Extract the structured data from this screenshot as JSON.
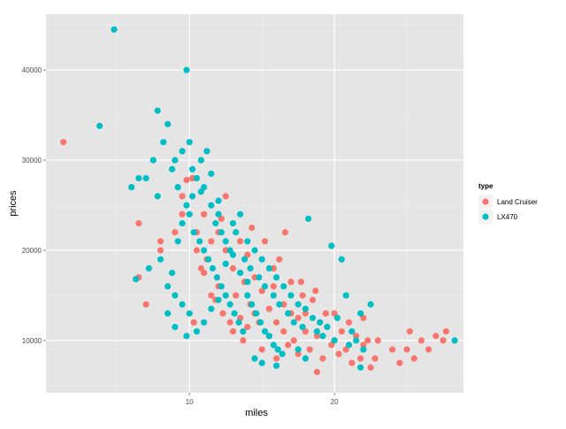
{
  "chart_data": {
    "type": "scatter",
    "title": "",
    "xlabel": "miles",
    "ylabel": "prices",
    "xlim": [
      0.1,
      28.9
    ],
    "ylim": [
      4200,
      46200
    ],
    "x_ticks": [
      10,
      20
    ],
    "y_ticks": [
      10000,
      20000,
      30000,
      40000
    ],
    "grid": true,
    "background": "#E5E5E5",
    "legend": {
      "title": "type",
      "placement": "right"
    },
    "series": [
      {
        "name": "Land Cruiser",
        "color": "#F8766D",
        "points": [
          [
            1.3,
            32000
          ],
          [
            6.5,
            23000
          ],
          [
            6.5,
            17000
          ],
          [
            7.0,
            14000
          ],
          [
            8.0,
            21000
          ],
          [
            8.0,
            20000
          ],
          [
            9.0,
            22000
          ],
          [
            9.5,
            24000
          ],
          [
            9.8,
            27800
          ],
          [
            10.2,
            28000
          ],
          [
            9.5,
            26000
          ],
          [
            10.5,
            20000
          ],
          [
            10.5,
            22000
          ],
          [
            10.8,
            18000
          ],
          [
            11.0,
            17500
          ],
          [
            11.2,
            19000
          ],
          [
            11.5,
            15000
          ],
          [
            11.5,
            21000
          ],
          [
            11.8,
            14500
          ],
          [
            12.0,
            16000
          ],
          [
            12.0,
            22000
          ],
          [
            12.3,
            13000
          ],
          [
            12.5,
            20000
          ],
          [
            12.5,
            26000
          ],
          [
            12.8,
            12000
          ],
          [
            13.0,
            18000
          ],
          [
            13.2,
            15000
          ],
          [
            13.5,
            12500
          ],
          [
            13.5,
            21000
          ],
          [
            13.8,
            16500
          ],
          [
            14.0,
            11500
          ],
          [
            14.0,
            19500
          ],
          [
            14.2,
            14000
          ],
          [
            14.5,
            13000
          ],
          [
            14.5,
            17000
          ],
          [
            14.8,
            12000
          ],
          [
            15.0,
            15500
          ],
          [
            15.0,
            9000
          ],
          [
            15.2,
            21000
          ],
          [
            15.5,
            13500
          ],
          [
            15.5,
            10500
          ],
          [
            15.8,
            16000
          ],
          [
            16.0,
            12000
          ],
          [
            16.0,
            8000
          ],
          [
            16.2,
            19000
          ],
          [
            16.5,
            14000
          ],
          [
            16.5,
            11000
          ],
          [
            16.8,
            9500
          ],
          [
            17.0,
            13000
          ],
          [
            17.0,
            16500
          ],
          [
            17.2,
            10000
          ],
          [
            17.5,
            12500
          ],
          [
            17.5,
            8500
          ],
          [
            17.8,
            15000
          ],
          [
            18.0,
            11000
          ],
          [
            18.0,
            13000
          ],
          [
            18.3,
            9000
          ],
          [
            18.5,
            14500
          ],
          [
            18.8,
            10500
          ],
          [
            18.8,
            6500
          ],
          [
            19.0,
            12000
          ],
          [
            19.2,
            8000
          ],
          [
            19.5,
            11500
          ],
          [
            19.8,
            9500
          ],
          [
            20.0,
            10000
          ],
          [
            20.0,
            13000
          ],
          [
            20.3,
            8500
          ],
          [
            20.5,
            11000
          ],
          [
            20.8,
            9000
          ],
          [
            21.0,
            12000
          ],
          [
            21.2,
            7500
          ],
          [
            21.5,
            10500
          ],
          [
            21.8,
            8000
          ],
          [
            22.0,
            9500
          ],
          [
            22.0,
            12500
          ],
          [
            22.3,
            10000
          ],
          [
            22.5,
            7000
          ],
          [
            22.8,
            8000
          ],
          [
            23.0,
            10000
          ],
          [
            24.0,
            9000
          ],
          [
            24.5,
            7500
          ],
          [
            25.0,
            9000
          ],
          [
            25.2,
            11000
          ],
          [
            25.5,
            8000
          ],
          [
            26.0,
            10000
          ],
          [
            26.5,
            9000
          ],
          [
            27.0,
            10500
          ],
          [
            27.5,
            10000
          ],
          [
            27.7,
            11000
          ],
          [
            10.3,
            12000
          ],
          [
            11.0,
            24000
          ],
          [
            12.2,
            23500
          ],
          [
            13.0,
            11000
          ],
          [
            13.7,
            10000
          ],
          [
            14.3,
            22500
          ],
          [
            15.8,
            18000
          ],
          [
            16.6,
            22000
          ],
          [
            17.7,
            16500
          ],
          [
            18.7,
            15500
          ],
          [
            19.4,
            13000
          ]
        ]
      },
      {
        "name": "LX470",
        "color": "#00BFC4",
        "points": [
          [
            4.8,
            44500
          ],
          [
            9.8,
            40000
          ],
          [
            3.8,
            33800
          ],
          [
            7.8,
            35500
          ],
          [
            8.5,
            34000
          ],
          [
            8.2,
            32000
          ],
          [
            9.0,
            30000
          ],
          [
            9.5,
            31000
          ],
          [
            10.0,
            32000
          ],
          [
            7.5,
            30000
          ],
          [
            6.0,
            27000
          ],
          [
            6.5,
            28000
          ],
          [
            7.0,
            28000
          ],
          [
            7.8,
            26000
          ],
          [
            8.8,
            29000
          ],
          [
            9.2,
            27000
          ],
          [
            9.8,
            25000
          ],
          [
            10.2,
            26000
          ],
          [
            10.5,
            28000
          ],
          [
            10.8,
            30000
          ],
          [
            11.0,
            27000
          ],
          [
            11.2,
            31000
          ],
          [
            11.5,
            25000
          ],
          [
            11.8,
            23000
          ],
          [
            12.0,
            24000
          ],
          [
            12.2,
            22000
          ],
          [
            12.5,
            21000
          ],
          [
            12.8,
            20000
          ],
          [
            13.0,
            23000
          ],
          [
            13.2,
            22000
          ],
          [
            13.5,
            24000
          ],
          [
            13.8,
            19000
          ],
          [
            14.0,
            21000
          ],
          [
            14.2,
            18000
          ],
          [
            14.5,
            20000
          ],
          [
            14.8,
            17000
          ],
          [
            15.0,
            19000
          ],
          [
            15.2,
            16000
          ],
          [
            15.5,
            18000
          ],
          [
            15.8,
            15000
          ],
          [
            16.0,
            17000
          ],
          [
            16.2,
            14000
          ],
          [
            16.5,
            16000
          ],
          [
            16.8,
            13000
          ],
          [
            17.0,
            15000
          ],
          [
            17.2,
            12000
          ],
          [
            17.5,
            14000
          ],
          [
            17.8,
            11500
          ],
          [
            18.0,
            13500
          ],
          [
            18.2,
            23500
          ],
          [
            18.5,
            12500
          ],
          [
            18.8,
            11000
          ],
          [
            19.0,
            12000
          ],
          [
            19.2,
            10500
          ],
          [
            19.5,
            11500
          ],
          [
            19.8,
            20500
          ],
          [
            20.0,
            10000
          ],
          [
            20.2,
            12500
          ],
          [
            20.5,
            19000
          ],
          [
            20.8,
            15000
          ],
          [
            21.0,
            9500
          ],
          [
            21.2,
            11000
          ],
          [
            21.5,
            10000
          ],
          [
            21.8,
            13000
          ],
          [
            22.0,
            9000
          ],
          [
            22.5,
            14000
          ],
          [
            28.3,
            10000
          ],
          [
            10.0,
            24000
          ],
          [
            10.3,
            22000
          ],
          [
            10.7,
            21000
          ],
          [
            11.0,
            20000
          ],
          [
            11.3,
            19000
          ],
          [
            11.6,
            18000
          ],
          [
            11.9,
            17000
          ],
          [
            12.2,
            16000
          ],
          [
            12.5,
            15000
          ],
          [
            12.8,
            14000
          ],
          [
            13.1,
            13000
          ],
          [
            13.4,
            12000
          ],
          [
            13.7,
            11000
          ],
          [
            14.0,
            15000
          ],
          [
            14.3,
            14000
          ],
          [
            14.6,
            13000
          ],
          [
            14.9,
            12000
          ],
          [
            15.2,
            11000
          ],
          [
            15.5,
            10500
          ],
          [
            15.8,
            9500
          ],
          [
            16.1,
            9000
          ],
          [
            16.4,
            8500
          ],
          [
            6.3,
            16800
          ],
          [
            7.2,
            18000
          ],
          [
            8.0,
            19000
          ],
          [
            8.5,
            16000
          ],
          [
            9.0,
            15000
          ],
          [
            9.5,
            14000
          ],
          [
            10.0,
            13000
          ],
          [
            10.5,
            11000
          ],
          [
            11.0,
            12000
          ],
          [
            11.5,
            13500
          ],
          [
            12.0,
            14500
          ],
          [
            12.5,
            18500
          ],
          [
            13.0,
            19500
          ],
          [
            13.5,
            17500
          ],
          [
            14.0,
            16500
          ],
          [
            14.5,
            8000
          ],
          [
            15.0,
            7500
          ],
          [
            16.0,
            7200
          ],
          [
            17.5,
            9000
          ],
          [
            18.0,
            8000
          ],
          [
            21.8,
            7000
          ],
          [
            10.2,
            29000
          ],
          [
            10.8,
            26500
          ],
          [
            11.5,
            28500
          ],
          [
            12.0,
            25500
          ],
          [
            9.5,
            23000
          ],
          [
            9.2,
            21000
          ],
          [
            8.8,
            17500
          ],
          [
            8.5,
            13000
          ],
          [
            9.0,
            11500
          ],
          [
            9.8,
            10500
          ]
        ]
      }
    ]
  }
}
